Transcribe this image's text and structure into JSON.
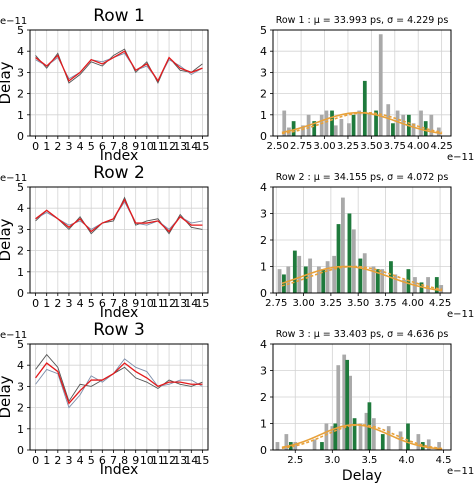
{
  "chart_data": [
    {
      "type": "line",
      "title": "Row 1",
      "xlabel": "Index",
      "ylabel": "Delay",
      "y_exponent_label": "e−11",
      "x": [
        0,
        1,
        2,
        3,
        4,
        5,
        6,
        7,
        8,
        9,
        10,
        11,
        12,
        13,
        14,
        15
      ],
      "xlim": [
        -0.5,
        15.5
      ],
      "ylim": [
        0,
        5
      ],
      "yticks": [
        0,
        1,
        2,
        3,
        4,
        5
      ],
      "grid": true,
      "series": [
        {
          "color": "#555555",
          "values": [
            3.8,
            3.2,
            3.9,
            2.5,
            2.9,
            3.5,
            3.3,
            3.8,
            4.1,
            3.0,
            3.5,
            2.5,
            3.7,
            3.1,
            3.0,
            3.4
          ]
        },
        {
          "color": "#7e8eaa",
          "values": [
            3.6,
            3.3,
            3.7,
            2.7,
            3.0,
            3.6,
            3.5,
            3.7,
            3.9,
            3.1,
            3.3,
            2.6,
            3.6,
            3.3,
            2.9,
            3.2
          ]
        },
        {
          "color": "#e31a1c",
          "values": [
            3.7,
            3.3,
            3.8,
            2.6,
            3.0,
            3.6,
            3.4,
            3.7,
            4.0,
            3.1,
            3.4,
            2.6,
            3.7,
            3.2,
            3.0,
            3.2
          ]
        }
      ]
    },
    {
      "type": "bar",
      "title": "Row 1 : μ = 33.993 ps, σ = 4.229 ps",
      "xlabel": "",
      "x_exponent_label": "e−11",
      "xlim": [
        2.45,
        4.35
      ],
      "ylim": [
        0,
        5
      ],
      "xticks": [
        "2.50",
        "2.75",
        "3.00",
        "3.25",
        "3.50",
        "3.75",
        "4.00",
        "4.25"
      ],
      "yticks": [
        0,
        1,
        2,
        3,
        4,
        5
      ],
      "grid": true,
      "bar_width": 0.04,
      "bars_gray": [
        [
          2.57,
          1.2
        ],
        [
          2.62,
          0.4
        ],
        [
          2.77,
          0.5
        ],
        [
          2.83,
          1.0
        ],
        [
          2.97,
          1.0
        ],
        [
          3.02,
          1.2
        ],
        [
          3.12,
          0.5
        ],
        [
          3.18,
          0.8
        ],
        [
          3.26,
          0.6
        ],
        [
          3.37,
          1.2
        ],
        [
          3.48,
          1.1
        ],
        [
          3.6,
          4.8
        ],
        [
          3.68,
          1.5
        ],
        [
          3.78,
          1.2
        ],
        [
          3.84,
          1.0
        ],
        [
          3.95,
          0.6
        ],
        [
          4.03,
          1.2
        ],
        [
          4.14,
          1.0
        ],
        [
          4.22,
          0.4
        ]
      ],
      "bars_green": [
        [
          2.67,
          0.7
        ],
        [
          2.89,
          0.7
        ],
        [
          3.08,
          1.2
        ],
        [
          3.31,
          1.0
        ],
        [
          3.43,
          2.6
        ],
        [
          3.55,
          1.2
        ],
        [
          3.73,
          0.6
        ],
        [
          3.9,
          1.0
        ],
        [
          4.08,
          0.7
        ]
      ],
      "fit_curve": {
        "mu": 3.4,
        "sigma": 0.423,
        "peak": 1.1,
        "color": "#e8a13a"
      }
    },
    {
      "type": "line",
      "title": "Row 2",
      "xlabel": "Index",
      "ylabel": "Delay",
      "y_exponent_label": "e−11",
      "x": [
        0,
        1,
        2,
        3,
        4,
        5,
        6,
        7,
        8,
        9,
        10,
        11,
        12,
        13,
        14,
        15
      ],
      "xlim": [
        -0.5,
        15.5
      ],
      "ylim": [
        0,
        5
      ],
      "yticks": [
        0,
        1,
        2,
        3,
        4,
        5
      ],
      "grid": true,
      "series": [
        {
          "color": "#555555",
          "values": [
            3.4,
            3.9,
            3.5,
            3.0,
            3.6,
            2.8,
            3.3,
            3.4,
            4.5,
            3.2,
            3.4,
            3.5,
            2.8,
            3.7,
            3.1,
            3.0
          ]
        },
        {
          "color": "#7e8eaa",
          "values": [
            3.5,
            3.8,
            3.5,
            3.2,
            3.4,
            3.0,
            3.3,
            3.5,
            4.3,
            3.3,
            3.2,
            3.4,
            3.0,
            3.6,
            3.3,
            3.4
          ]
        },
        {
          "color": "#e31a1c",
          "values": [
            3.5,
            3.9,
            3.5,
            3.1,
            3.5,
            2.9,
            3.3,
            3.5,
            4.4,
            3.3,
            3.3,
            3.4,
            2.9,
            3.6,
            3.2,
            3.2
          ]
        }
      ]
    },
    {
      "type": "bar",
      "title": "Row 2 : μ = 34.155 ps, σ = 4.072 ps",
      "xlabel": "",
      "x_exponent_label": "e−11",
      "xlim": [
        2.72,
        4.35
      ],
      "ylim": [
        0,
        4
      ],
      "xticks": [
        "2.75",
        "3.00",
        "3.25",
        "3.50",
        "3.75",
        "4.00",
        "4.25"
      ],
      "yticks": [
        0,
        1,
        2,
        3,
        4
      ],
      "grid": true,
      "bar_width": 0.035,
      "bars_gray": [
        [
          2.78,
          0.9
        ],
        [
          2.86,
          1.0
        ],
        [
          2.96,
          1.4
        ],
        [
          3.06,
          1.3
        ],
        [
          3.14,
          1.0
        ],
        [
          3.22,
          1.2
        ],
        [
          3.28,
          1.4
        ],
        [
          3.36,
          3.6
        ],
        [
          3.46,
          2.4
        ],
        [
          3.56,
          1.5
        ],
        [
          3.64,
          1.0
        ],
        [
          3.72,
          0.9
        ],
        [
          3.84,
          0.7
        ],
        [
          3.92,
          0.5
        ],
        [
          4.02,
          0.6
        ],
        [
          4.14,
          0.6
        ],
        [
          4.26,
          0.3
        ]
      ],
      "bars_green": [
        [
          2.82,
          0.7
        ],
        [
          2.92,
          1.6
        ],
        [
          3.02,
          1.0
        ],
        [
          3.18,
          0.9
        ],
        [
          3.32,
          2.6
        ],
        [
          3.42,
          3.0
        ],
        [
          3.52,
          1.3
        ],
        [
          3.68,
          0.9
        ],
        [
          3.8,
          1.2
        ],
        [
          3.96,
          0.9
        ],
        [
          4.08,
          0.4
        ],
        [
          4.22,
          0.6
        ]
      ],
      "fit_curve": {
        "mu": 3.42,
        "sigma": 0.407,
        "peak": 1.0,
        "color": "#e8a13a"
      }
    },
    {
      "type": "line",
      "title": "Row 3",
      "xlabel": "Index",
      "ylabel": "Delay",
      "y_exponent_label": "e−11",
      "x": [
        0,
        1,
        2,
        3,
        4,
        5,
        6,
        7,
        8,
        9,
        10,
        11,
        12,
        13,
        14,
        15
      ],
      "xlim": [
        -0.5,
        15.5
      ],
      "ylim": [
        0,
        5
      ],
      "yticks": [
        0,
        1,
        2,
        3,
        4,
        5
      ],
      "grid": true,
      "series": [
        {
          "color": "#555555",
          "values": [
            3.8,
            4.5,
            3.9,
            2.3,
            3.1,
            3.0,
            3.3,
            3.6,
            3.9,
            3.4,
            3.2,
            2.9,
            3.3,
            3.1,
            3.0,
            3.2
          ]
        },
        {
          "color": "#7e8eaa",
          "values": [
            3.1,
            3.8,
            3.6,
            2.0,
            2.6,
            3.5,
            3.2,
            3.6,
            4.3,
            3.9,
            3.7,
            3.0,
            3.1,
            3.3,
            3.3,
            3.0
          ]
        },
        {
          "color": "#e31a1c",
          "values": [
            3.4,
            4.1,
            3.7,
            2.2,
            2.8,
            3.3,
            3.3,
            3.6,
            4.1,
            3.7,
            3.4,
            3.0,
            3.2,
            3.2,
            3.1,
            3.1
          ]
        }
      ]
    },
    {
      "type": "bar",
      "title": "Row 3 : μ = 33.403 ps, σ = 4.636 ps",
      "xlabel": "Delay",
      "x_exponent_label": "e−11",
      "xlim": [
        2.2,
        4.6
      ],
      "ylim": [
        0,
        4
      ],
      "xticks": [
        "2.5",
        "3.0",
        "3.5",
        "4.0",
        "4.5"
      ],
      "yticks": [
        0,
        1,
        2,
        3,
        4
      ],
      "grid": true,
      "bar_width": 0.05,
      "bars_gray": [
        [
          2.26,
          0.3
        ],
        [
          2.38,
          0.6
        ],
        [
          2.5,
          0.3
        ],
        [
          2.76,
          0.4
        ],
        [
          2.92,
          1.0
        ],
        [
          3.0,
          0.9
        ],
        [
          3.08,
          3.2
        ],
        [
          3.16,
          3.6
        ],
        [
          3.24,
          2.8
        ],
        [
          3.38,
          1.0
        ],
        [
          3.46,
          1.4
        ],
        [
          3.56,
          1.2
        ],
        [
          3.76,
          0.9
        ],
        [
          3.92,
          0.7
        ],
        [
          4.16,
          0.6
        ],
        [
          4.3,
          0.4
        ],
        [
          4.44,
          0.3
        ]
      ],
      "bars_green": [
        [
          2.44,
          0.3
        ],
        [
          2.86,
          0.3
        ],
        [
          3.04,
          1.0
        ],
        [
          3.2,
          3.4
        ],
        [
          3.3,
          1.2
        ],
        [
          3.5,
          1.8
        ],
        [
          3.68,
          0.6
        ],
        [
          4.02,
          1.0
        ],
        [
          4.22,
          0.3
        ]
      ],
      "fit_curve": {
        "mu": 3.34,
        "sigma": 0.464,
        "peak": 0.95,
        "color": "#e8a13a"
      }
    }
  ]
}
